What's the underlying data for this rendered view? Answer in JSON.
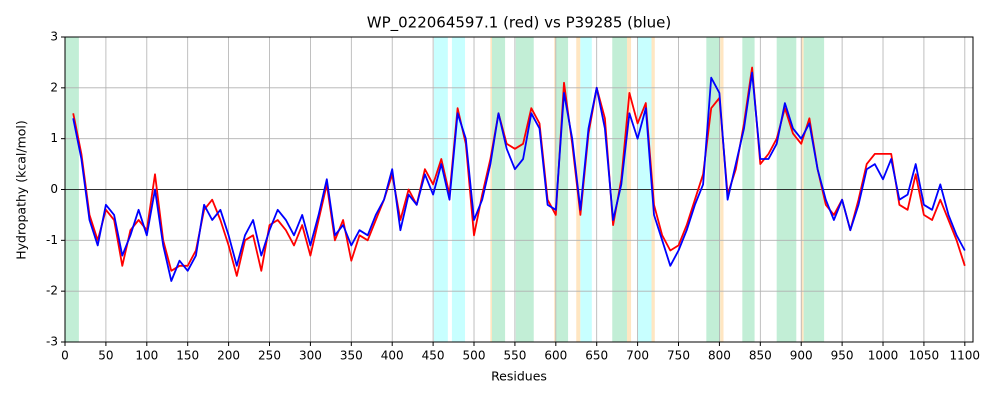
{
  "chart_data": {
    "type": "line",
    "title": "WP_022064597.1 (red) vs P39285 (blue)",
    "x_label": "Residues",
    "y_label": "Hydropathy (kcal/mol)",
    "xlim": [
      0,
      1110
    ],
    "ylim": [
      -3,
      3
    ],
    "xticks": [
      0,
      50,
      100,
      150,
      200,
      250,
      300,
      350,
      400,
      450,
      500,
      550,
      600,
      650,
      700,
      750,
      800,
      850,
      900,
      950,
      1000,
      1050,
      1100
    ],
    "yticks": [
      -3,
      -2,
      -1,
      0,
      1,
      2,
      3
    ],
    "grid": true,
    "zero_line": 0,
    "regions": [
      {
        "start": 0,
        "end": 17,
        "color": "#c2eed6"
      },
      {
        "start": 451,
        "end": 468,
        "color": "#c8ffff"
      },
      {
        "start": 473,
        "end": 489,
        "color": "#c8ffff"
      },
      {
        "start": 520,
        "end": 522,
        "color": "#ffe6c2"
      },
      {
        "start": 522,
        "end": 538,
        "color": "#c2eed6"
      },
      {
        "start": 551,
        "end": 573,
        "color": "#c2eed6"
      },
      {
        "start": 598,
        "end": 600,
        "color": "#ffe6c2"
      },
      {
        "start": 600,
        "end": 615,
        "color": "#c2eed6"
      },
      {
        "start": 625,
        "end": 630,
        "color": "#ffe6c2"
      },
      {
        "start": 630,
        "end": 644,
        "color": "#c8ffff"
      },
      {
        "start": 669,
        "end": 687,
        "color": "#c2eed6"
      },
      {
        "start": 687,
        "end": 692,
        "color": "#ffe6c2"
      },
      {
        "start": 700,
        "end": 717,
        "color": "#c8ffff"
      },
      {
        "start": 717,
        "end": 721,
        "color": "#ffe6c2"
      },
      {
        "start": 784,
        "end": 801,
        "color": "#c2eed6"
      },
      {
        "start": 801,
        "end": 805,
        "color": "#ffe6c2"
      },
      {
        "start": 828,
        "end": 843,
        "color": "#c2eed6"
      },
      {
        "start": 870,
        "end": 894,
        "color": "#c2eed6"
      },
      {
        "start": 900,
        "end": 903,
        "color": "#ffe6c2"
      },
      {
        "start": 903,
        "end": 928,
        "color": "#c2eed6"
      }
    ],
    "x": [
      10,
      20,
      30,
      40,
      50,
      60,
      70,
      80,
      90,
      100,
      110,
      120,
      130,
      140,
      150,
      160,
      170,
      180,
      190,
      200,
      210,
      220,
      230,
      240,
      250,
      260,
      270,
      280,
      290,
      300,
      310,
      320,
      330,
      340,
      350,
      360,
      370,
      380,
      390,
      400,
      410,
      420,
      430,
      440,
      450,
      460,
      470,
      480,
      490,
      500,
      510,
      520,
      530,
      540,
      550,
      560,
      570,
      580,
      590,
      600,
      610,
      620,
      630,
      640,
      650,
      660,
      670,
      680,
      690,
      700,
      710,
      720,
      730,
      740,
      750,
      760,
      770,
      780,
      790,
      800,
      810,
      820,
      830,
      840,
      850,
      860,
      870,
      880,
      890,
      900,
      910,
      920,
      930,
      940,
      950,
      960,
      970,
      980,
      990,
      1000,
      1010,
      1020,
      1030,
      1040,
      1050,
      1060,
      1070,
      1080,
      1090,
      1100
    ],
    "series": [
      {
        "name": "WP_022064597.1",
        "color": "#ff0000",
        "values": [
          1.5,
          0.7,
          -0.5,
          -1.0,
          -0.4,
          -0.6,
          -1.5,
          -0.8,
          -0.6,
          -0.8,
          0.3,
          -1.0,
          -1.6,
          -1.5,
          -1.5,
          -1.2,
          -0.4,
          -0.2,
          -0.6,
          -1.1,
          -1.7,
          -1.0,
          -0.9,
          -1.6,
          -0.7,
          -0.6,
          -0.8,
          -1.1,
          -0.7,
          -1.3,
          -0.6,
          0.1,
          -1.0,
          -0.6,
          -1.4,
          -0.9,
          -1.0,
          -0.6,
          -0.2,
          0.3,
          -0.6,
          0.0,
          -0.3,
          0.4,
          0.1,
          0.6,
          -0.1,
          1.6,
          0.9,
          -0.9,
          -0.1,
          0.6,
          1.5,
          0.9,
          0.8,
          0.9,
          1.6,
          1.3,
          -0.2,
          -0.5,
          2.1,
          0.9,
          -0.5,
          1.1,
          2.0,
          1.4,
          -0.7,
          0.2,
          1.9,
          1.3,
          1.7,
          -0.3,
          -0.9,
          -1.2,
          -1.1,
          -0.7,
          -0.2,
          0.3,
          1.6,
          1.8,
          -0.1,
          0.4,
          1.3,
          2.4,
          0.5,
          0.7,
          1.0,
          1.6,
          1.1,
          0.9,
          1.4,
          0.4,
          -0.3,
          -0.5,
          -0.2,
          -0.8,
          -0.2,
          0.5,
          0.7,
          0.7,
          0.7,
          -0.3,
          -0.4,
          0.3,
          -0.5,
          -0.6,
          -0.2,
          -0.6,
          -1.0,
          -1.5
        ]
      },
      {
        "name": "P39285",
        "color": "#0000ff",
        "values": [
          1.4,
          0.6,
          -0.6,
          -1.1,
          -0.3,
          -0.5,
          -1.3,
          -0.9,
          -0.4,
          -0.9,
          0.0,
          -1.1,
          -1.8,
          -1.4,
          -1.6,
          -1.3,
          -0.3,
          -0.6,
          -0.4,
          -0.9,
          -1.5,
          -0.9,
          -0.6,
          -1.3,
          -0.8,
          -0.4,
          -0.6,
          -0.9,
          -0.5,
          -1.1,
          -0.5,
          0.2,
          -0.9,
          -0.7,
          -1.1,
          -0.8,
          -0.9,
          -0.5,
          -0.2,
          0.4,
          -0.8,
          -0.1,
          -0.3,
          0.3,
          -0.1,
          0.5,
          -0.2,
          1.5,
          1.0,
          -0.6,
          -0.2,
          0.5,
          1.5,
          0.8,
          0.4,
          0.6,
          1.5,
          1.2,
          -0.3,
          -0.4,
          1.9,
          1.0,
          -0.4,
          1.2,
          2.0,
          1.2,
          -0.6,
          0.1,
          1.5,
          1.0,
          1.6,
          -0.5,
          -1.0,
          -1.5,
          -1.2,
          -0.8,
          -0.3,
          0.1,
          2.2,
          1.9,
          -0.2,
          0.5,
          1.2,
          2.3,
          0.6,
          0.6,
          0.9,
          1.7,
          1.2,
          1.0,
          1.3,
          0.4,
          -0.2,
          -0.6,
          -0.2,
          -0.8,
          -0.3,
          0.4,
          0.5,
          0.2,
          0.6,
          -0.2,
          -0.1,
          0.5,
          -0.3,
          -0.4,
          0.1,
          -0.5,
          -0.9,
          -1.2
        ]
      }
    ]
  }
}
